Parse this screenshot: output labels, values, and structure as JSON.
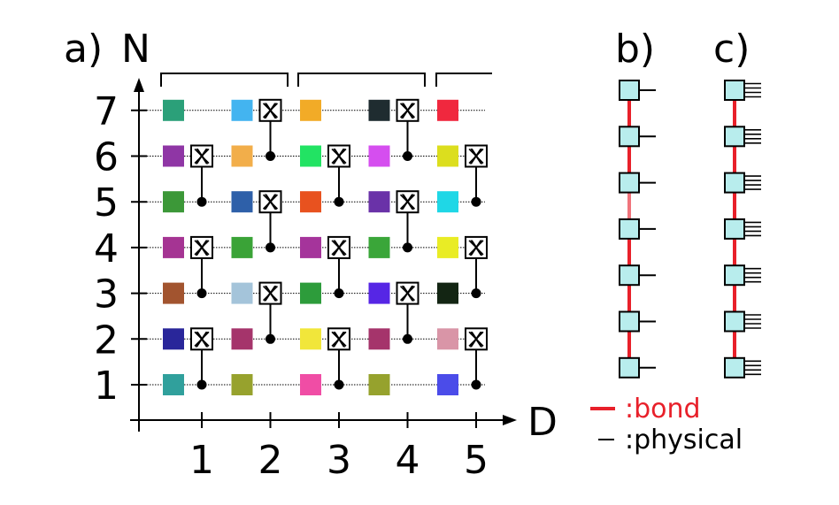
{
  "panel_labels": {
    "a": "a)",
    "b": "b)",
    "c": "c)"
  },
  "axes": {
    "y_label": "N",
    "x_label": "D",
    "y_ticks": [
      "1",
      "2",
      "3",
      "4",
      "5",
      "6",
      "7"
    ],
    "x_ticks": [
      "1",
      "2",
      "3",
      "4",
      "5"
    ]
  },
  "gate_symbol": "X",
  "legend": {
    "bond_label": ":bond",
    "physical_label": ":physical",
    "bond_color": "#e8202a",
    "physical_color": "#000000"
  },
  "colors": {
    "tensor_fill": "#b8eded",
    "tensor_stroke": "#000000",
    "bond": "#e8202a",
    "bond_light": "#f0747c"
  },
  "grid_colors": [
    [
      "#30a09c",
      "#29269a",
      "#a2542f",
      "#a53493",
      "#3c9838",
      "#8f36a5",
      "#2ba079"
    ],
    [
      "#97a22d",
      "#a5346b",
      "#a4c4da",
      "#3aa337",
      "#2e60a9",
      "#f2ae4a",
      "#43b4f0"
    ],
    [
      "#f04da5",
      "#f1e63a",
      "#2d9c3b",
      "#a5349b",
      "#e8521f",
      "#22e363",
      "#f2ab27"
    ],
    [
      "#96a22d",
      "#a5346b",
      "#5626e5",
      "#3aa639",
      "#6a32a8",
      "#d54eef",
      "#1f2c30"
    ],
    [
      "#4b4ce9",
      "#d995a7",
      "#132513",
      "#e9ec25",
      "#1fd7e6",
      "#dcde1e",
      "#f0283e"
    ]
  ],
  "gates": [
    {
      "column": 1,
      "control_qubit": 1,
      "target_qubit": 2
    },
    {
      "column": 1,
      "control_qubit": 3,
      "target_qubit": 4
    },
    {
      "column": 1,
      "control_qubit": 5,
      "target_qubit": 6
    },
    {
      "column": 2,
      "control_qubit": 2,
      "target_qubit": 3
    },
    {
      "column": 2,
      "control_qubit": 4,
      "target_qubit": 5
    },
    {
      "column": 2,
      "control_qubit": 6,
      "target_qubit": 7
    },
    {
      "column": 3,
      "control_qubit": 1,
      "target_qubit": 2
    },
    {
      "column": 3,
      "control_qubit": 3,
      "target_qubit": 4
    },
    {
      "column": 3,
      "control_qubit": 5,
      "target_qubit": 6
    },
    {
      "column": 4,
      "control_qubit": 2,
      "target_qubit": 3
    },
    {
      "column": 4,
      "control_qubit": 4,
      "target_qubit": 5
    },
    {
      "column": 4,
      "control_qubit": 6,
      "target_qubit": 7
    },
    {
      "column": 5,
      "control_qubit": 1,
      "target_qubit": 2
    },
    {
      "column": 5,
      "control_qubit": 3,
      "target_qubit": 4
    },
    {
      "column": 5,
      "control_qubit": 5,
      "target_qubit": 6
    }
  ],
  "mps_b": {
    "sites": 7,
    "physical_legs": 1
  },
  "mps_c": {
    "sites": 7,
    "physical_legs": 4
  }
}
